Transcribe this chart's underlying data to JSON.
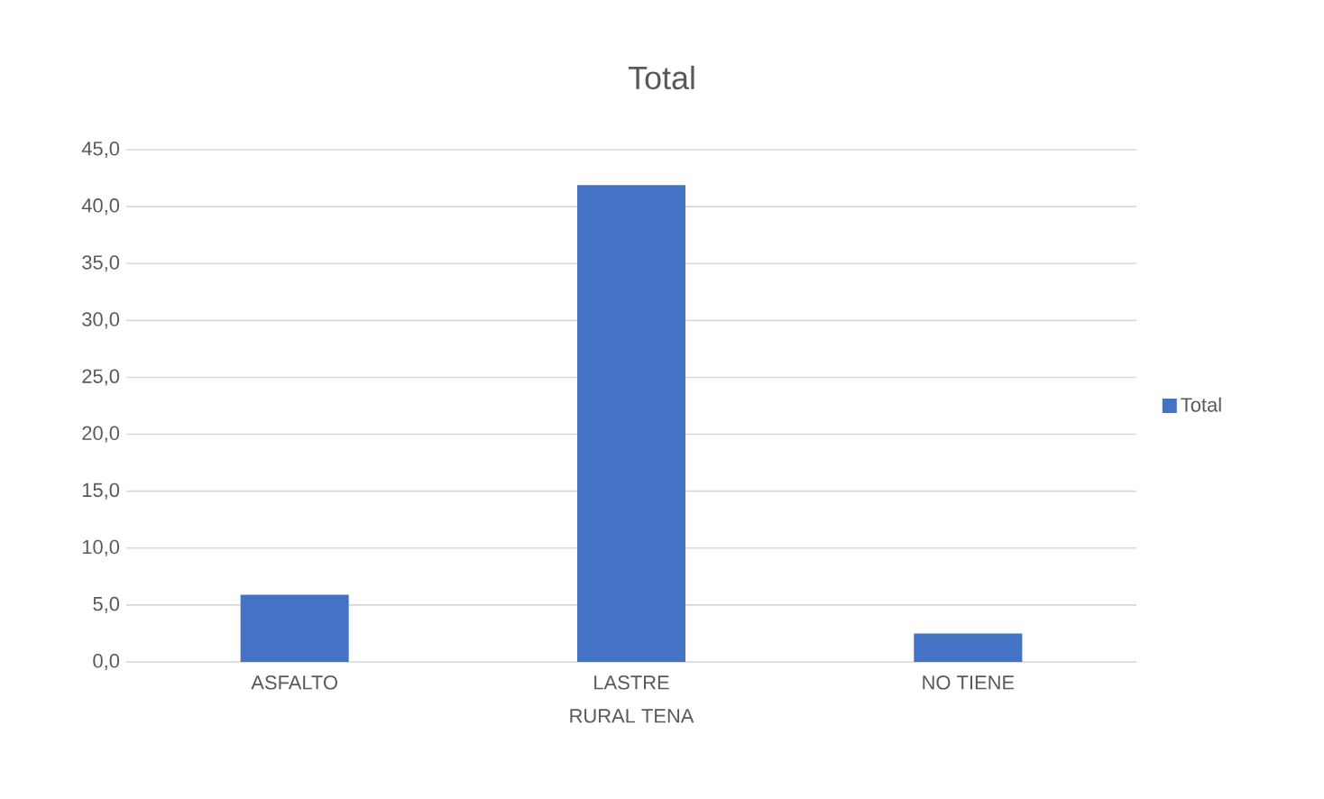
{
  "chart_data": {
    "type": "bar",
    "title": "Total",
    "xlabel": "RURAL TENA",
    "categories": [
      "ASFALTO",
      "LASTRE",
      "NO TIENE"
    ],
    "series": [
      {
        "name": "Total",
        "color": "#4472c4",
        "values": [
          5.9,
          41.9,
          2.5
        ]
      }
    ],
    "ylim": [
      0,
      45
    ],
    "yticks": [
      {
        "value": 0,
        "label": "0,0"
      },
      {
        "value": 5,
        "label": "5,0"
      },
      {
        "value": 10,
        "label": "10,0"
      },
      {
        "value": 15,
        "label": "15,0"
      },
      {
        "value": 20,
        "label": "20,0"
      },
      {
        "value": 25,
        "label": "25,0"
      },
      {
        "value": 30,
        "label": "30,0"
      },
      {
        "value": 35,
        "label": "35,0"
      },
      {
        "value": 40,
        "label": "40,0"
      },
      {
        "value": 45,
        "label": "45,0"
      }
    ],
    "grid": "y",
    "legend": "right"
  }
}
